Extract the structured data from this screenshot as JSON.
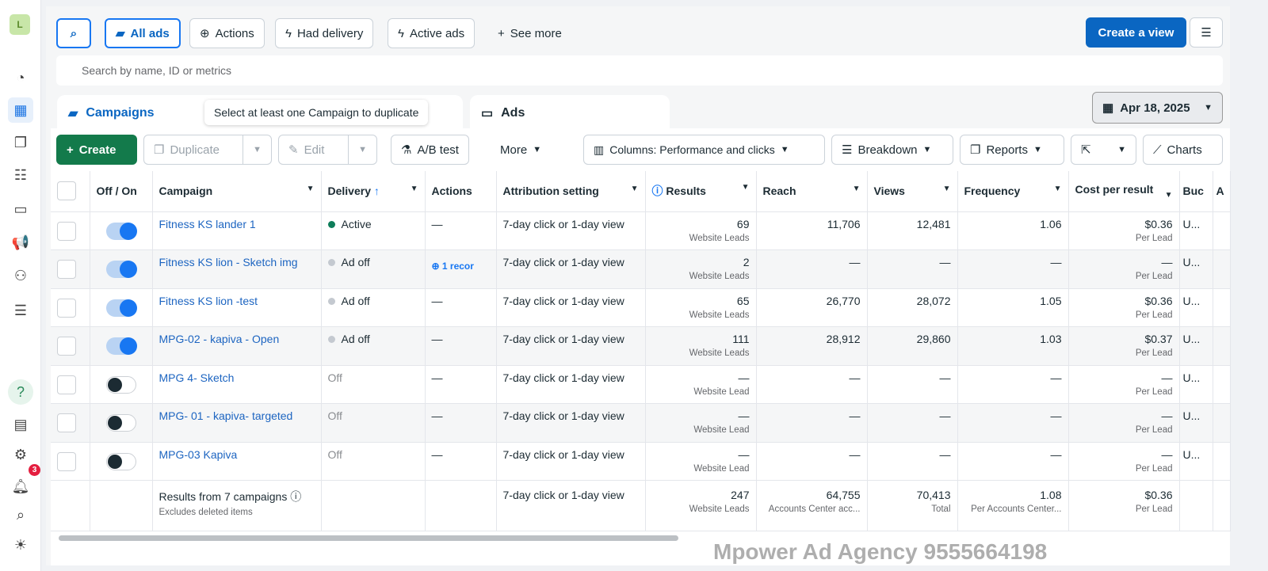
{
  "sidebar": {
    "avatar": "L",
    "notifications_count": "3",
    "icons": [
      "dashboard-icon",
      "table-icon",
      "pages-icon",
      "audiences-icon",
      "billing-icon",
      "campaign-megaphone-icon",
      "connections-icon",
      "menu-icon",
      "help-icon",
      "news-icon",
      "settings-icon",
      "bell-icon",
      "search-icon",
      "bug-icon"
    ]
  },
  "toolbar": {
    "all_ads": "All ads",
    "actions": "Actions",
    "had_delivery": "Had delivery",
    "active_ads": "Active ads",
    "see_more": "See more",
    "create_view": "Create a view"
  },
  "search": {
    "placeholder": "Search by name, ID or metrics"
  },
  "tabs": {
    "campaigns": "Campaigns",
    "ads": "Ads"
  },
  "tooltip": "Select at least one Campaign to duplicate",
  "date": "Apr 18, 2025",
  "actionbar": {
    "create": "Create",
    "duplicate": "Duplicate",
    "edit": "Edit",
    "ab_test": "A/B test",
    "more": "More",
    "columns": "Columns: Performance and clicks",
    "breakdown": "Breakdown",
    "reports": "Reports",
    "charts": "Charts"
  },
  "table": {
    "headers": [
      "Off / On",
      "Campaign",
      "Delivery",
      "Actions",
      "Attribution setting",
      "Results",
      "Reach",
      "Views",
      "Frequency",
      "Cost per result",
      "Buc",
      "A"
    ],
    "rows": [
      {
        "on": true,
        "name": "Fitness KS lander 1",
        "delivery": "Active",
        "delivery_color": "#0e7d5a",
        "actions": "—",
        "attribution": "7-day click or 1-day view",
        "results": "69",
        "results_sub": "Website Leads",
        "reach": "11,706",
        "views": "12,481",
        "frequency": "1.06",
        "cost": "$0.36",
        "cost_sub": "Per Lead",
        "bud": "U..."
      },
      {
        "on": true,
        "name": "Fitness KS lion - Sketch img",
        "delivery": "Ad off",
        "delivery_color": "#c4c9d0",
        "actions": "1 recor",
        "attribution": "7-day click or 1-day view",
        "results": "2",
        "results_sub": "Website Leads",
        "reach": "—",
        "views": "—",
        "frequency": "—",
        "cost": "—",
        "cost_sub": "Per Lead",
        "bud": "U..."
      },
      {
        "on": true,
        "name": "Fitness KS lion -test",
        "delivery": "Ad off",
        "delivery_color": "#c4c9d0",
        "actions": "—",
        "attribution": "7-day click or 1-day view",
        "results": "65",
        "results_sub": "Website Leads",
        "reach": "26,770",
        "views": "28,072",
        "frequency": "1.05",
        "cost": "$0.36",
        "cost_sub": "Per Lead",
        "bud": "U..."
      },
      {
        "on": true,
        "name": "MPG-02 - kapiva - Open",
        "delivery": "Ad off",
        "delivery_color": "#c4c9d0",
        "actions": "—",
        "attribution": "7-day click or 1-day view",
        "results": "111",
        "results_sub": "Website Leads",
        "reach": "28,912",
        "views": "29,860",
        "frequency": "1.03",
        "cost": "$0.37",
        "cost_sub": "Per Lead",
        "bud": "U..."
      },
      {
        "on": false,
        "name": "MPG 4- Sketch",
        "delivery": "Off",
        "delivery_color": "",
        "actions": "—",
        "attribution": "7-day click or 1-day view",
        "results": "—",
        "results_sub": "Website Lead",
        "reach": "—",
        "views": "—",
        "frequency": "—",
        "cost": "—",
        "cost_sub": "Per Lead",
        "bud": "U..."
      },
      {
        "on": false,
        "name": "MPG- 01 - kapiva- targeted",
        "delivery": "Off",
        "delivery_color": "",
        "actions": "—",
        "attribution": "7-day click or 1-day view",
        "results": "—",
        "results_sub": "Website Lead",
        "reach": "—",
        "views": "—",
        "frequency": "—",
        "cost": "—",
        "cost_sub": "Per Lead",
        "bud": "U..."
      },
      {
        "on": false,
        "name": "MPG-03 Kapiva",
        "delivery": "Off",
        "delivery_color": "",
        "actions": "—",
        "attribution": "7-day click or 1-day view",
        "results": "—",
        "results_sub": "Website Lead",
        "reach": "—",
        "views": "—",
        "frequency": "—",
        "cost": "—",
        "cost_sub": "Per Lead",
        "bud": "U..."
      }
    ],
    "footer": {
      "label": "Results from 7 campaigns",
      "sub": "Excludes deleted items",
      "attribution": "7-day click or 1-day view",
      "results": "247",
      "results_sub": "Website Leads",
      "reach": "64,755",
      "reach_sub": "Accounts Center acc...",
      "views": "70,413",
      "views_sub": "Total",
      "frequency": "1.08",
      "frequency_sub": "Per Accounts Center...",
      "cost": "$0.36",
      "cost_sub": "Per Lead"
    }
  },
  "watermark": "Mpower Ad Agency 9555664198"
}
